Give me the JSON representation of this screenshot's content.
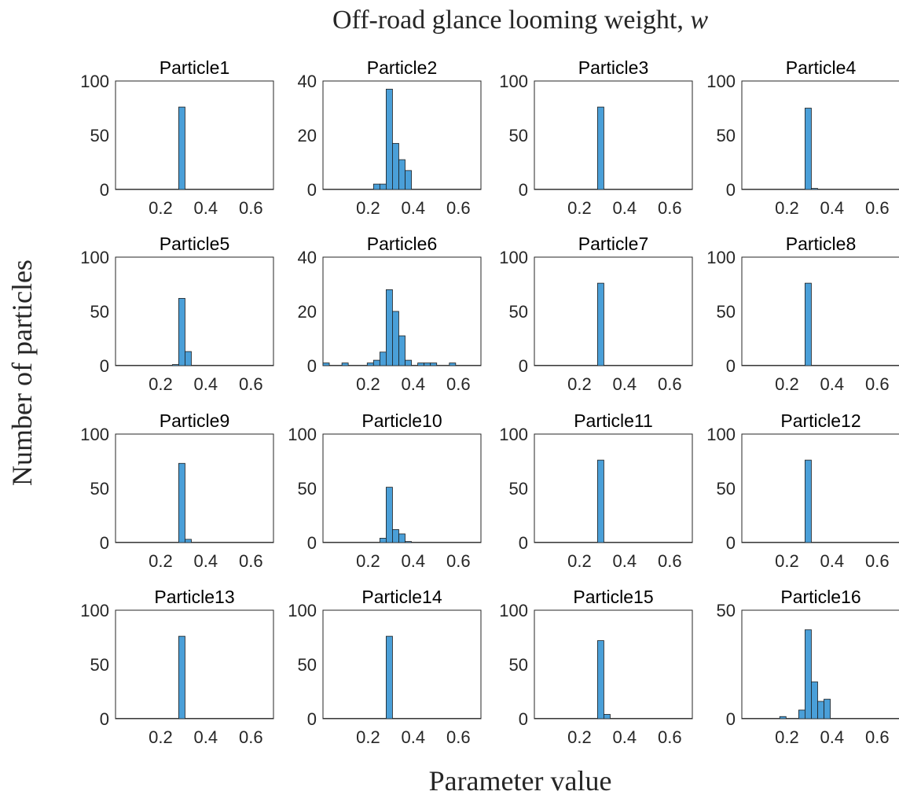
{
  "chart_data": {
    "type": "bar",
    "title": "Off-road glance looming weight, w",
    "title_text": "Off-road glance looming weight, ",
    "title_symbol": "w",
    "xlabel": "Parameter value",
    "ylabel": "Number of particles",
    "xlim": [
      0,
      0.7
    ],
    "xticks": [
      0.2,
      0.4,
      0.6
    ],
    "xtick_labels": [
      "0.2",
      "0.4",
      "0.6"
    ],
    "bin_width": 0.028,
    "grid": false,
    "layout": "4x4",
    "panels": [
      {
        "title": "Particle1",
        "ylim": [
          0,
          100
        ],
        "yticks": [
          0,
          50,
          100
        ],
        "bins": [
          [
            0.28,
            76
          ]
        ]
      },
      {
        "title": "Particle2",
        "ylim": [
          0,
          40
        ],
        "yticks": [
          0,
          20,
          40
        ],
        "bins": [
          [
            0.224,
            2
          ],
          [
            0.252,
            2
          ],
          [
            0.28,
            37
          ],
          [
            0.308,
            17
          ],
          [
            0.336,
            11
          ],
          [
            0.364,
            7
          ]
        ]
      },
      {
        "title": "Particle3",
        "ylim": [
          0,
          100
        ],
        "yticks": [
          0,
          50,
          100
        ],
        "bins": [
          [
            0.28,
            76
          ]
        ]
      },
      {
        "title": "Particle4",
        "ylim": [
          0,
          100
        ],
        "yticks": [
          0,
          50,
          100
        ],
        "bins": [
          [
            0.28,
            75
          ],
          [
            0.308,
            1
          ]
        ]
      },
      {
        "title": "Particle5",
        "ylim": [
          0,
          100
        ],
        "yticks": [
          0,
          50,
          100
        ],
        "bins": [
          [
            0.252,
            1
          ],
          [
            0.28,
            62
          ],
          [
            0.308,
            13
          ]
        ]
      },
      {
        "title": "Particle6",
        "ylim": [
          0,
          40
        ],
        "yticks": [
          0,
          20,
          40
        ],
        "bins": [
          [
            0.0,
            1
          ],
          [
            0.084,
            1
          ],
          [
            0.196,
            1
          ],
          [
            0.224,
            2
          ],
          [
            0.252,
            5
          ],
          [
            0.28,
            28
          ],
          [
            0.308,
            20
          ],
          [
            0.336,
            11
          ],
          [
            0.364,
            2
          ],
          [
            0.42,
            1
          ],
          [
            0.448,
            1
          ],
          [
            0.476,
            1
          ],
          [
            0.56,
            1
          ]
        ]
      },
      {
        "title": "Particle7",
        "ylim": [
          0,
          100
        ],
        "yticks": [
          0,
          50,
          100
        ],
        "bins": [
          [
            0.28,
            76
          ]
        ]
      },
      {
        "title": "Particle8",
        "ylim": [
          0,
          100
        ],
        "yticks": [
          0,
          50,
          100
        ],
        "bins": [
          [
            0.28,
            76
          ]
        ]
      },
      {
        "title": "Particle9",
        "ylim": [
          0,
          100
        ],
        "yticks": [
          0,
          50,
          100
        ],
        "bins": [
          [
            0.28,
            73
          ],
          [
            0.308,
            3
          ]
        ]
      },
      {
        "title": "Particle10",
        "ylim": [
          0,
          100
        ],
        "yticks": [
          0,
          50,
          100
        ],
        "bins": [
          [
            0.252,
            4
          ],
          [
            0.28,
            51
          ],
          [
            0.308,
            12
          ],
          [
            0.336,
            8
          ],
          [
            0.364,
            1
          ]
        ]
      },
      {
        "title": "Particle11",
        "ylim": [
          0,
          100
        ],
        "yticks": [
          0,
          50,
          100
        ],
        "bins": [
          [
            0.28,
            76
          ]
        ]
      },
      {
        "title": "Particle12",
        "ylim": [
          0,
          100
        ],
        "yticks": [
          0,
          50,
          100
        ],
        "bins": [
          [
            0.28,
            76
          ]
        ]
      },
      {
        "title": "Particle13",
        "ylim": [
          0,
          100
        ],
        "yticks": [
          0,
          50,
          100
        ],
        "bins": [
          [
            0.28,
            76
          ]
        ]
      },
      {
        "title": "Particle14",
        "ylim": [
          0,
          100
        ],
        "yticks": [
          0,
          50,
          100
        ],
        "bins": [
          [
            0.28,
            76
          ]
        ]
      },
      {
        "title": "Particle15",
        "ylim": [
          0,
          100
        ],
        "yticks": [
          0,
          50,
          100
        ],
        "bins": [
          [
            0.28,
            72
          ],
          [
            0.308,
            4
          ]
        ]
      },
      {
        "title": "Particle16",
        "ylim": [
          0,
          50
        ],
        "yticks": [
          0,
          50
        ],
        "bins": [
          [
            0.168,
            1
          ],
          [
            0.252,
            4
          ],
          [
            0.28,
            41
          ],
          [
            0.308,
            17
          ],
          [
            0.336,
            8
          ],
          [
            0.364,
            9
          ]
        ]
      }
    ]
  }
}
